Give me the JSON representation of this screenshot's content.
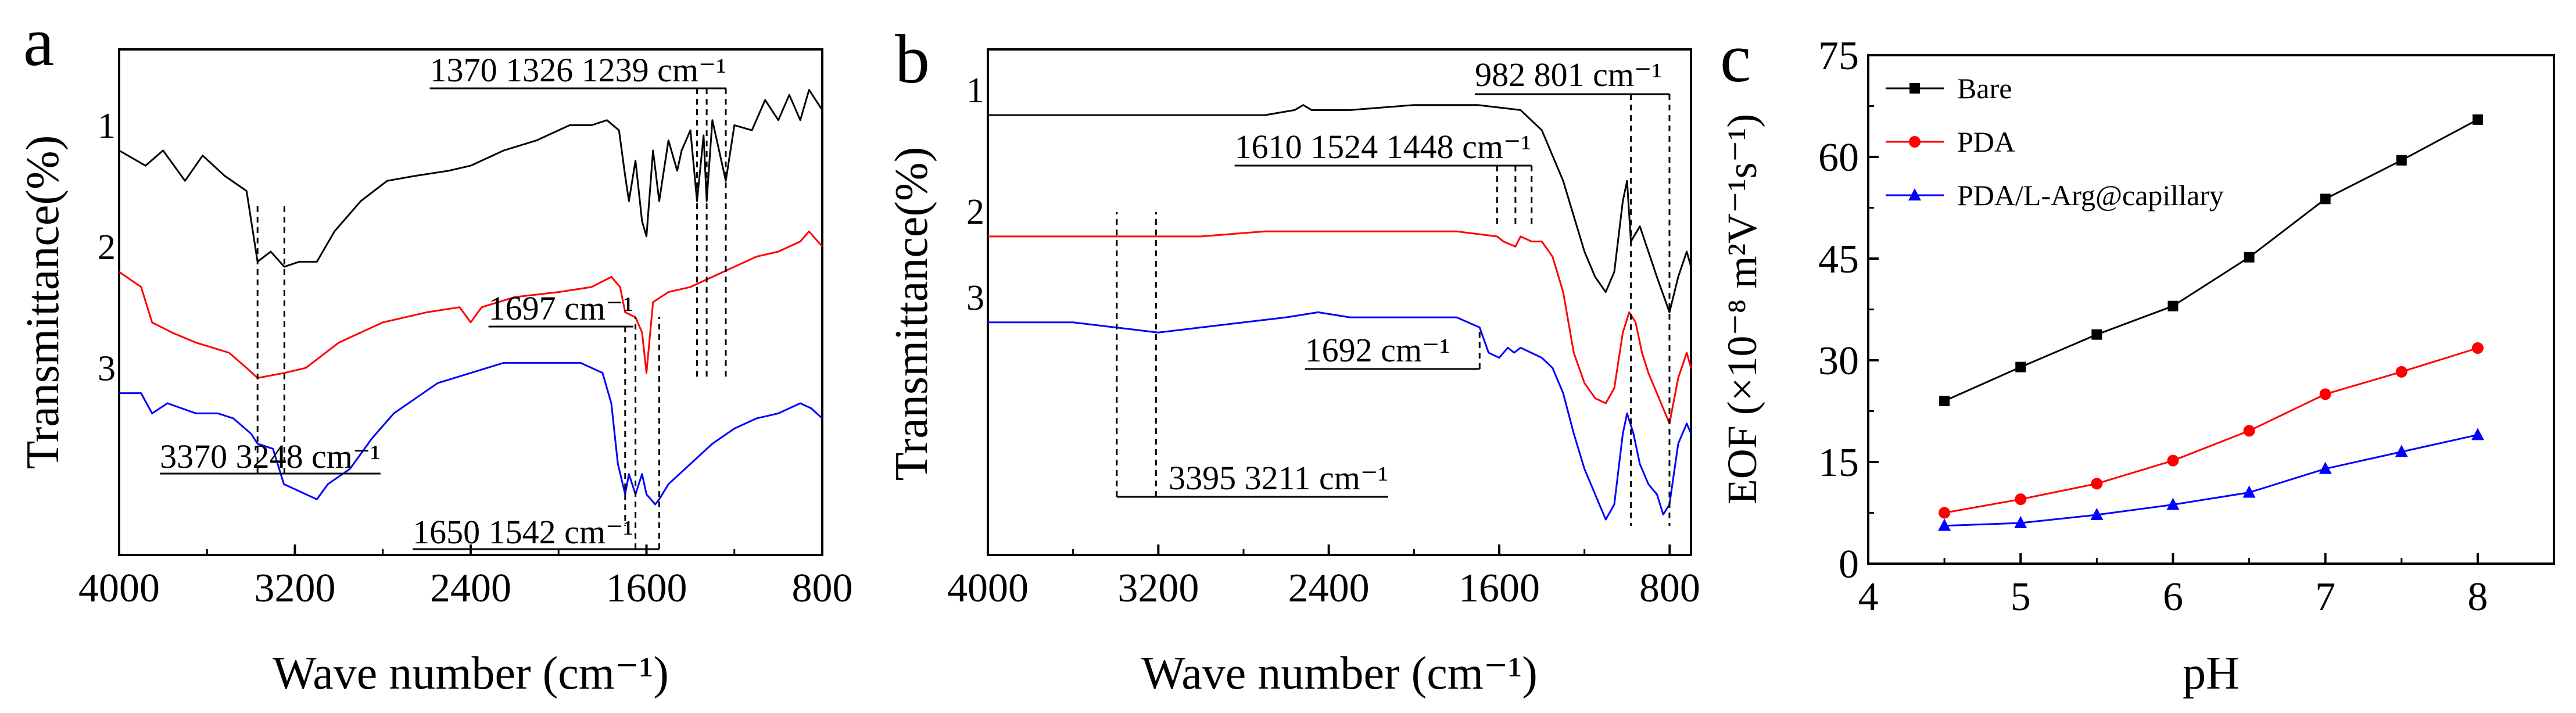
{
  "figure": {
    "panel_labels": [
      "a",
      "b",
      "c"
    ]
  },
  "chart_data": [
    {
      "panel": "a",
      "type": "line",
      "title": "",
      "xlabel": "Wave number (cm⁻¹)",
      "ylabel": "Transmittance(%)",
      "xlim": [
        4000,
        800
      ],
      "x_ticks": [
        4000,
        3200,
        2400,
        1600,
        800
      ],
      "y_ticks": [],
      "series": [
        {
          "name": "1",
          "color": "#000000",
          "points": [
            [
              4000,
              0.8
            ],
            [
              3880,
              0.77
            ],
            [
              3800,
              0.8
            ],
            [
              3700,
              0.74
            ],
            [
              3620,
              0.79
            ],
            [
              3520,
              0.75
            ],
            [
              3420,
              0.72
            ],
            [
              3370,
              0.58
            ],
            [
              3310,
              0.6
            ],
            [
              3248,
              0.57
            ],
            [
              3180,
              0.58
            ],
            [
              3100,
              0.58
            ],
            [
              3020,
              0.64
            ],
            [
              2900,
              0.7
            ],
            [
              2780,
              0.74
            ],
            [
              2650,
              0.75
            ],
            [
              2500,
              0.76
            ],
            [
              2400,
              0.77
            ],
            [
              2250,
              0.8
            ],
            [
              2100,
              0.82
            ],
            [
              1950,
              0.85
            ],
            [
              1850,
              0.85
            ],
            [
              1780,
              0.86
            ],
            [
              1725,
              0.84
            ],
            [
              1697,
              0.75
            ],
            [
              1680,
              0.7
            ],
            [
              1650,
              0.78
            ],
            [
              1620,
              0.66
            ],
            [
              1600,
              0.63
            ],
            [
              1570,
              0.8
            ],
            [
              1542,
              0.7
            ],
            [
              1500,
              0.82
            ],
            [
              1460,
              0.76
            ],
            [
              1440,
              0.8
            ],
            [
              1400,
              0.84
            ],
            [
              1370,
              0.7
            ],
            [
              1340,
              0.83
            ],
            [
              1326,
              0.7
            ],
            [
              1300,
              0.86
            ],
            [
              1239,
              0.74
            ],
            [
              1200,
              0.85
            ],
            [
              1120,
              0.84
            ],
            [
              1060,
              0.9
            ],
            [
              1000,
              0.86
            ],
            [
              950,
              0.91
            ],
            [
              900,
              0.86
            ],
            [
              860,
              0.92
            ],
            [
              800,
              0.88
            ]
          ]
        },
        {
          "name": "2",
          "color": "#ff0000",
          "points": [
            [
              4000,
              0.56
            ],
            [
              3900,
              0.53
            ],
            [
              3850,
              0.46
            ],
            [
              3760,
              0.44
            ],
            [
              3650,
              0.42
            ],
            [
              3500,
              0.4
            ],
            [
              3420,
              0.37
            ],
            [
              3370,
              0.35
            ],
            [
              3248,
              0.36
            ],
            [
              3150,
              0.37
            ],
            [
              3000,
              0.42
            ],
            [
              2800,
              0.46
            ],
            [
              2600,
              0.48
            ],
            [
              2450,
              0.49
            ],
            [
              2400,
              0.46
            ],
            [
              2350,
              0.49
            ],
            [
              2200,
              0.51
            ],
            [
              2000,
              0.52
            ],
            [
              1850,
              0.53
            ],
            [
              1760,
              0.55
            ],
            [
              1720,
              0.53
            ],
            [
              1697,
              0.48
            ],
            [
              1650,
              0.47
            ],
            [
              1620,
              0.44
            ],
            [
              1600,
              0.36
            ],
            [
              1570,
              0.5
            ],
            [
              1500,
              0.52
            ],
            [
              1400,
              0.53
            ],
            [
              1300,
              0.55
            ],
            [
              1200,
              0.57
            ],
            [
              1100,
              0.59
            ],
            [
              1000,
              0.6
            ],
            [
              900,
              0.62
            ],
            [
              860,
              0.64
            ],
            [
              800,
              0.61
            ]
          ]
        },
        {
          "name": "3",
          "color": "#0000ff",
          "points": [
            [
              4000,
              0.32
            ],
            [
              3900,
              0.32
            ],
            [
              3850,
              0.28
            ],
            [
              3780,
              0.3
            ],
            [
              3650,
              0.28
            ],
            [
              3550,
              0.28
            ],
            [
              3480,
              0.27
            ],
            [
              3400,
              0.24
            ],
            [
              3370,
              0.22
            ],
            [
              3300,
              0.21
            ],
            [
              3250,
              0.14
            ],
            [
              3200,
              0.13
            ],
            [
              3150,
              0.12
            ],
            [
              3100,
              0.11
            ],
            [
              3050,
              0.14
            ],
            [
              2950,
              0.17
            ],
            [
              2850,
              0.23
            ],
            [
              2750,
              0.28
            ],
            [
              2650,
              0.31
            ],
            [
              2550,
              0.34
            ],
            [
              2400,
              0.36
            ],
            [
              2250,
              0.38
            ],
            [
              2100,
              0.38
            ],
            [
              2000,
              0.38
            ],
            [
              1900,
              0.38
            ],
            [
              1800,
              0.36
            ],
            [
              1760,
              0.3
            ],
            [
              1730,
              0.18
            ],
            [
              1697,
              0.12
            ],
            [
              1680,
              0.16
            ],
            [
              1650,
              0.12
            ],
            [
              1620,
              0.16
            ],
            [
              1600,
              0.12
            ],
            [
              1560,
              0.1
            ],
            [
              1542,
              0.11
            ],
            [
              1500,
              0.14
            ],
            [
              1400,
              0.18
            ],
            [
              1300,
              0.22
            ],
            [
              1200,
              0.25
            ],
            [
              1100,
              0.27
            ],
            [
              1000,
              0.28
            ],
            [
              900,
              0.3
            ],
            [
              850,
              0.29
            ],
            [
              800,
              0.27
            ]
          ]
        }
      ],
      "annotations": [
        {
          "text": "1370 1326 1239 cm⁻¹",
          "ref_x": [
            1370,
            1326,
            1239
          ]
        },
        {
          "text": "1697 cm⁻¹",
          "ref_x": [
            1697
          ]
        },
        {
          "text": "3370 3248 cm⁻¹",
          "ref_x": [
            3370,
            3248
          ]
        },
        {
          "text": "1650 1542 cm⁻¹",
          "ref_x": [
            1650,
            1542
          ]
        }
      ]
    },
    {
      "panel": "b",
      "type": "line",
      "title": "",
      "xlabel": "Wave number (cm⁻¹)",
      "ylabel": "Transmittance(%)",
      "xlim": [
        4000,
        700
      ],
      "x_ticks": [
        4000,
        3200,
        2400,
        1600,
        800
      ],
      "y_ticks": [],
      "series": [
        {
          "name": "1",
          "color": "#000000",
          "points": [
            [
              4000,
              0.87
            ],
            [
              3500,
              0.87
            ],
            [
              3000,
              0.87
            ],
            [
              2700,
              0.87
            ],
            [
              2560,
              0.88
            ],
            [
              2520,
              0.89
            ],
            [
              2480,
              0.88
            ],
            [
              2300,
              0.88
            ],
            [
              2000,
              0.89
            ],
            [
              1700,
              0.89
            ],
            [
              1500,
              0.88
            ],
            [
              1400,
              0.84
            ],
            [
              1300,
              0.74
            ],
            [
              1200,
              0.6
            ],
            [
              1150,
              0.55
            ],
            [
              1100,
              0.52
            ],
            [
              1060,
              0.56
            ],
            [
              1020,
              0.7
            ],
            [
              1000,
              0.74
            ],
            [
              982,
              0.62
            ],
            [
              940,
              0.65
            ],
            [
              900,
              0.6
            ],
            [
              860,
              0.55
            ],
            [
              801,
              0.48
            ],
            [
              760,
              0.55
            ],
            [
              720,
              0.6
            ],
            [
              700,
              0.57
            ]
          ]
        },
        {
          "name": "2",
          "color": "#ff0000",
          "points": [
            [
              4000,
              0.63
            ],
            [
              3500,
              0.63
            ],
            [
              3000,
              0.63
            ],
            [
              2700,
              0.64
            ],
            [
              2520,
              0.64
            ],
            [
              2300,
              0.64
            ],
            [
              2000,
              0.64
            ],
            [
              1800,
              0.64
            ],
            [
              1610,
              0.63
            ],
            [
              1580,
              0.62
            ],
            [
              1524,
              0.61
            ],
            [
              1500,
              0.63
            ],
            [
              1448,
              0.62
            ],
            [
              1400,
              0.62
            ],
            [
              1350,
              0.59
            ],
            [
              1300,
              0.52
            ],
            [
              1250,
              0.4
            ],
            [
              1200,
              0.34
            ],
            [
              1150,
              0.31
            ],
            [
              1100,
              0.3
            ],
            [
              1060,
              0.33
            ],
            [
              1020,
              0.44
            ],
            [
              990,
              0.48
            ],
            [
              960,
              0.46
            ],
            [
              930,
              0.4
            ],
            [
              900,
              0.36
            ],
            [
              860,
              0.32
            ],
            [
              801,
              0.26
            ],
            [
              760,
              0.35
            ],
            [
              720,
              0.4
            ],
            [
              700,
              0.37
            ]
          ]
        },
        {
          "name": "3",
          "color": "#0000ff",
          "points": [
            [
              4000,
              0.46
            ],
            [
              3800,
              0.46
            ],
            [
              3600,
              0.46
            ],
            [
              3400,
              0.45
            ],
            [
              3200,
              0.44
            ],
            [
              3000,
              0.45
            ],
            [
              2800,
              0.46
            ],
            [
              2600,
              0.47
            ],
            [
              2450,
              0.48
            ],
            [
              2300,
              0.47
            ],
            [
              2000,
              0.47
            ],
            [
              1800,
              0.47
            ],
            [
              1692,
              0.45
            ],
            [
              1650,
              0.4
            ],
            [
              1600,
              0.39
            ],
            [
              1560,
              0.41
            ],
            [
              1530,
              0.4
            ],
            [
              1500,
              0.41
            ],
            [
              1450,
              0.4
            ],
            [
              1400,
              0.39
            ],
            [
              1350,
              0.37
            ],
            [
              1300,
              0.32
            ],
            [
              1250,
              0.24
            ],
            [
              1200,
              0.17
            ],
            [
              1150,
              0.12
            ],
            [
              1100,
              0.07
            ],
            [
              1060,
              0.1
            ],
            [
              1020,
              0.24
            ],
            [
              1000,
              0.28
            ],
            [
              970,
              0.24
            ],
            [
              940,
              0.18
            ],
            [
              900,
              0.14
            ],
            [
              860,
              0.12
            ],
            [
              830,
              0.08
            ],
            [
              801,
              0.1
            ],
            [
              760,
              0.22
            ],
            [
              720,
              0.26
            ],
            [
              700,
              0.24
            ]
          ]
        }
      ],
      "annotations": [
        {
          "text": "982 801 cm⁻¹",
          "ref_x": [
            982,
            801
          ]
        },
        {
          "text": "1610 1524 1448 cm⁻¹",
          "ref_x": [
            1610,
            1524,
            1448
          ]
        },
        {
          "text": "1692 cm⁻¹",
          "ref_x": [
            1692
          ]
        },
        {
          "text": "3395 3211 cm⁻¹",
          "ref_x": [
            3395,
            3211
          ]
        }
      ]
    },
    {
      "panel": "c",
      "type": "line",
      "title": "",
      "xlabel": "pH",
      "ylabel": "EOF (×10⁻⁸ m²V⁻¹s⁻¹)",
      "xlim": [
        4,
        8.5
      ],
      "ylim": [
        0,
        75
      ],
      "x_ticks": [
        4,
        5,
        6,
        7,
        8
      ],
      "y_ticks": [
        0,
        15,
        30,
        45,
        60,
        75
      ],
      "legend_position": "top-left",
      "x": [
        4.5,
        5.0,
        5.5,
        6.0,
        6.5,
        7.0,
        7.5,
        8.0
      ],
      "series": [
        {
          "name": "Bare",
          "color": "#000000",
          "marker": "square",
          "values": [
            24,
            29,
            33.8,
            38,
            45.2,
            53.8,
            59.5,
            65.5
          ]
        },
        {
          "name": "PDA",
          "color": "#ff0000",
          "marker": "circle",
          "values": [
            7.5,
            9.5,
            11.8,
            15.2,
            19.6,
            25,
            28.3,
            31.8
          ]
        },
        {
          "name": "PDA/L-Arg@capillary",
          "color": "#0000ff",
          "marker": "triangle",
          "values": [
            5.6,
            6,
            7.2,
            8.7,
            10.5,
            14,
            16.5,
            19
          ]
        }
      ]
    }
  ]
}
